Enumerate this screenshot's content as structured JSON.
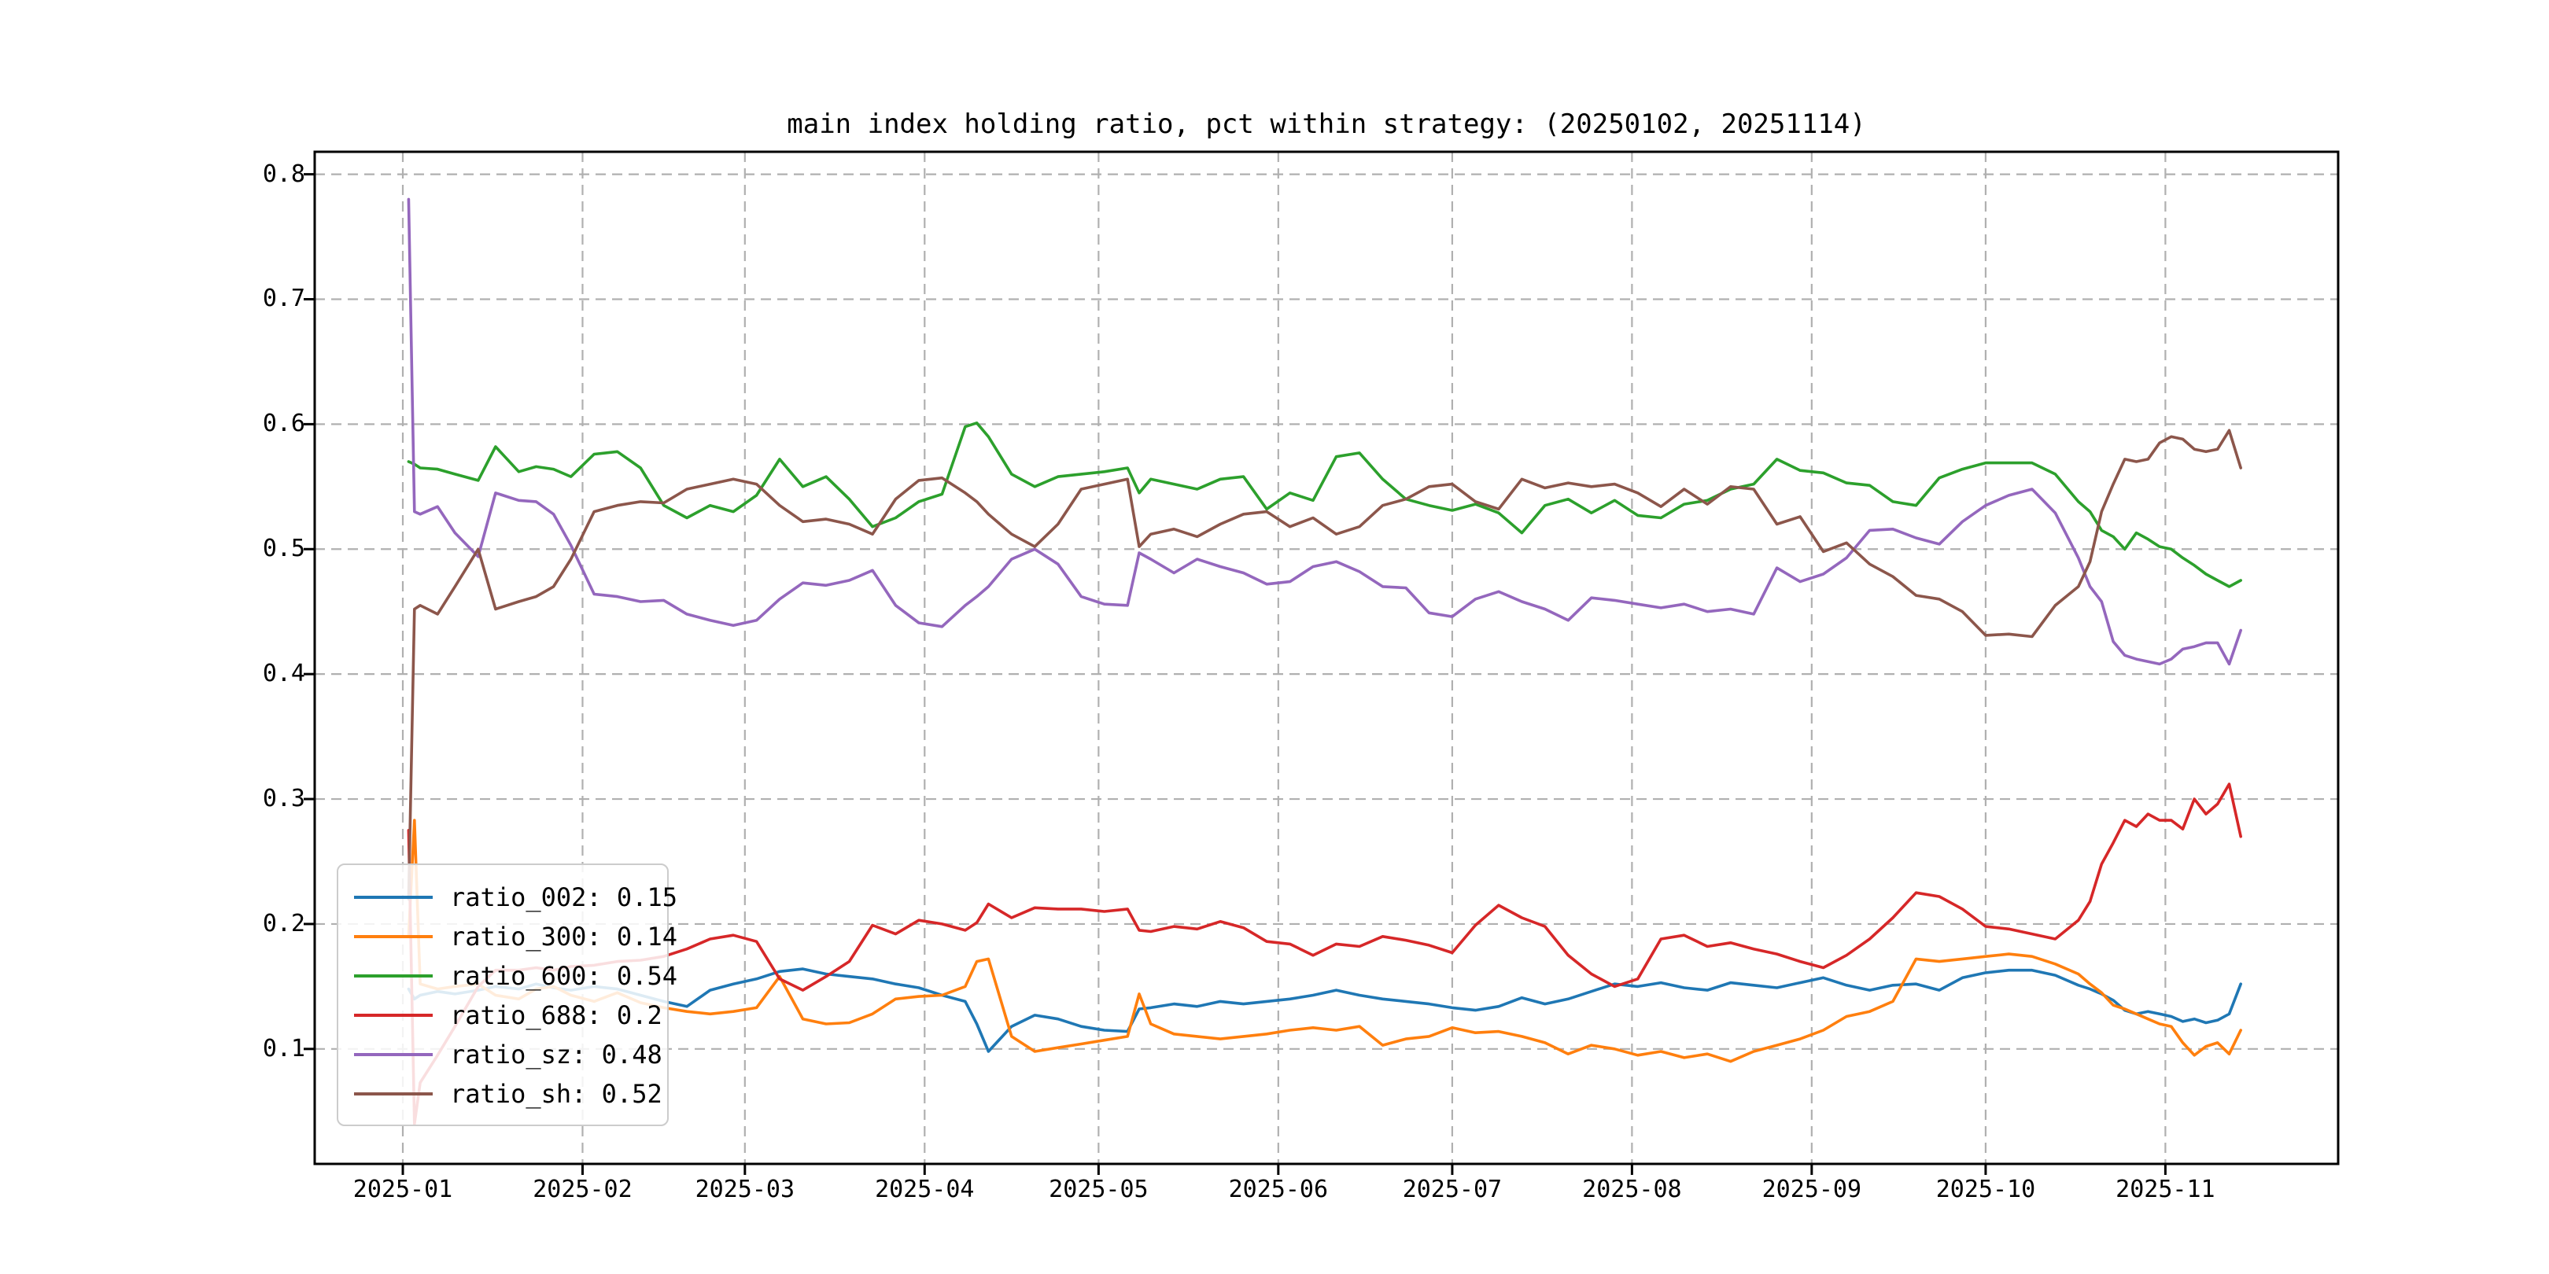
{
  "page": {
    "background": "#ffffff"
  },
  "chart_data": {
    "type": "line",
    "title": "main index holding ratio, pct within strategy: (20250102, 20251114)",
    "date_range": [
      "20250102",
      "20251114"
    ],
    "x_tick_labels": [
      "2025-01",
      "2025-02",
      "2025-03",
      "2025-04",
      "2025-05",
      "2025-06",
      "2025-07",
      "2025-08",
      "2025-09",
      "2025-10",
      "2025-11"
    ],
    "month_tick_days": [
      0,
      31,
      59,
      90,
      120,
      151,
      181,
      212,
      243,
      273,
      304
    ],
    "y_ticks": [
      {
        "label": "0.8",
        "value": 0.8
      },
      {
        "label": "0.7",
        "value": 0.7
      },
      {
        "label": "0.6",
        "value": 0.6
      },
      {
        "label": "0.5",
        "value": 0.5
      },
      {
        "label": "0.4",
        "value": 0.4
      },
      {
        "label": "0.3",
        "value": 0.3
      },
      {
        "label": "0.2",
        "value": 0.2
      },
      {
        "label": "0.1",
        "value": 0.1
      }
    ],
    "xlim_days": [
      -15.2,
      333.8
    ],
    "ylim": [
      0.008,
      0.818
    ],
    "grid": "dashed",
    "grid_color": "#b0b0b0",
    "legend_position": "lower left",
    "x_days": [
      1,
      2,
      3,
      6,
      9,
      13,
      16,
      20,
      23,
      26,
      29,
      33,
      37,
      41,
      45,
      49,
      53,
      57,
      61,
      65,
      69,
      73,
      77,
      81,
      85,
      89,
      93,
      97,
      99,
      101,
      105,
      109,
      113,
      117,
      121,
      125,
      127,
      129,
      133,
      137,
      141,
      145,
      149,
      153,
      157,
      161,
      165,
      169,
      173,
      177,
      181,
      185,
      189,
      193,
      197,
      201,
      205,
      209,
      213,
      217,
      221,
      225,
      229,
      233,
      237,
      241,
      245,
      249,
      253,
      257,
      261,
      265,
      269,
      273,
      277,
      281,
      285,
      289,
      291,
      293,
      295,
      297,
      299,
      301,
      303,
      305,
      307,
      309,
      311,
      313,
      315,
      317
    ],
    "series": [
      {
        "name": "ratio_002",
        "legend_label": "ratio_002: 0.15",
        "mean": 0.15,
        "color": "#1f77b4",
        "values": [
          0.148,
          0.14,
          0.143,
          0.146,
          0.144,
          0.147,
          0.15,
          0.148,
          0.152,
          0.149,
          0.147,
          0.15,
          0.148,
          0.143,
          0.138,
          0.134,
          0.147,
          0.152,
          0.156,
          0.162,
          0.164,
          0.16,
          0.158,
          0.156,
          0.152,
          0.149,
          0.143,
          0.138,
          0.12,
          0.098,
          0.118,
          0.127,
          0.124,
          0.118,
          0.115,
          0.114,
          0.132,
          0.133,
          0.136,
          0.134,
          0.138,
          0.136,
          0.138,
          0.14,
          0.143,
          0.147,
          0.143,
          0.14,
          0.138,
          0.136,
          0.133,
          0.131,
          0.134,
          0.141,
          0.136,
          0.14,
          0.146,
          0.152,
          0.15,
          0.153,
          0.149,
          0.147,
          0.153,
          0.151,
          0.149,
          0.153,
          0.157,
          0.151,
          0.147,
          0.151,
          0.152,
          0.147,
          0.157,
          0.161,
          0.163,
          0.163,
          0.159,
          0.151,
          0.148,
          0.144,
          0.139,
          0.131,
          0.128,
          0.13,
          0.128,
          0.126,
          0.122,
          0.124,
          0.121,
          0.123,
          0.128,
          0.152
        ]
      },
      {
        "name": "ratio_300",
        "legend_label": "ratio_300: 0.14",
        "mean": 0.14,
        "color": "#ff7f0e",
        "values": [
          0.19,
          0.283,
          0.152,
          0.148,
          0.15,
          0.152,
          0.143,
          0.14,
          0.148,
          0.15,
          0.143,
          0.138,
          0.145,
          0.137,
          0.133,
          0.13,
          0.128,
          0.13,
          0.133,
          0.158,
          0.124,
          0.12,
          0.121,
          0.128,
          0.14,
          0.142,
          0.143,
          0.15,
          0.17,
          0.172,
          0.11,
          0.098,
          0.101,
          0.104,
          0.107,
          0.11,
          0.144,
          0.12,
          0.112,
          0.11,
          0.108,
          0.11,
          0.112,
          0.115,
          0.117,
          0.115,
          0.118,
          0.103,
          0.108,
          0.11,
          0.117,
          0.113,
          0.114,
          0.11,
          0.105,
          0.096,
          0.103,
          0.1,
          0.095,
          0.098,
          0.093,
          0.096,
          0.09,
          0.098,
          0.103,
          0.108,
          0.115,
          0.126,
          0.13,
          0.138,
          0.172,
          0.17,
          0.172,
          0.174,
          0.176,
          0.174,
          0.168,
          0.16,
          0.152,
          0.145,
          0.135,
          0.132,
          0.128,
          0.124,
          0.12,
          0.118,
          0.105,
          0.095,
          0.102,
          0.105,
          0.096,
          0.115
        ]
      },
      {
        "name": "ratio_600",
        "legend_label": "ratio_600: 0.54",
        "mean": 0.54,
        "color": "#2ca02c",
        "values": [
          0.57,
          0.568,
          0.565,
          0.564,
          0.56,
          0.555,
          0.582,
          0.562,
          0.566,
          0.564,
          0.558,
          0.576,
          0.578,
          0.565,
          0.535,
          0.525,
          0.535,
          0.53,
          0.543,
          0.572,
          0.55,
          0.558,
          0.54,
          0.518,
          0.525,
          0.538,
          0.544,
          0.598,
          0.601,
          0.59,
          0.56,
          0.55,
          0.558,
          0.56,
          0.562,
          0.565,
          0.545,
          0.556,
          0.552,
          0.548,
          0.556,
          0.558,
          0.532,
          0.545,
          0.539,
          0.574,
          0.577,
          0.556,
          0.54,
          0.535,
          0.531,
          0.536,
          0.529,
          0.513,
          0.535,
          0.54,
          0.529,
          0.539,
          0.527,
          0.525,
          0.536,
          0.539,
          0.548,
          0.552,
          0.572,
          0.563,
          0.561,
          0.553,
          0.551,
          0.538,
          0.535,
          0.557,
          0.564,
          0.569,
          0.569,
          0.569,
          0.56,
          0.538,
          0.53,
          0.515,
          0.51,
          0.5,
          0.513,
          0.508,
          0.502,
          0.5,
          0.493,
          0.487,
          0.48,
          0.475,
          0.47,
          0.475
        ]
      },
      {
        "name": "ratio_688",
        "legend_label": "ratio_688: 0.2",
        "mean": 0.2,
        "color": "#d62728",
        "values": [
          0.275,
          0.04,
          0.073,
          0.095,
          0.118,
          0.15,
          0.163,
          0.163,
          0.165,
          0.163,
          0.166,
          0.167,
          0.17,
          0.171,
          0.174,
          0.18,
          0.188,
          0.191,
          0.186,
          0.156,
          0.147,
          0.158,
          0.17,
          0.199,
          0.192,
          0.203,
          0.2,
          0.195,
          0.201,
          0.216,
          0.205,
          0.213,
          0.212,
          0.212,
          0.21,
          0.212,
          0.195,
          0.194,
          0.198,
          0.196,
          0.202,
          0.197,
          0.186,
          0.184,
          0.175,
          0.184,
          0.182,
          0.19,
          0.187,
          0.183,
          0.177,
          0.199,
          0.215,
          0.205,
          0.198,
          0.175,
          0.16,
          0.15,
          0.156,
          0.188,
          0.191,
          0.182,
          0.185,
          0.18,
          0.176,
          0.17,
          0.165,
          0.175,
          0.188,
          0.205,
          0.225,
          0.222,
          0.212,
          0.198,
          0.196,
          0.192,
          0.188,
          0.203,
          0.218,
          0.248,
          0.265,
          0.283,
          0.278,
          0.288,
          0.283,
          0.283,
          0.276,
          0.3,
          0.288,
          0.296,
          0.312,
          0.27
        ]
      },
      {
        "name": "ratio_sz",
        "legend_label": "ratio_sz: 0.48",
        "mean": 0.48,
        "color": "#9467bd",
        "values": [
          0.78,
          0.53,
          0.528,
          0.534,
          0.513,
          0.494,
          0.545,
          0.539,
          0.538,
          0.528,
          0.503,
          0.464,
          0.462,
          0.458,
          0.459,
          0.448,
          0.443,
          0.439,
          0.443,
          0.46,
          0.473,
          0.471,
          0.475,
          0.483,
          0.455,
          0.441,
          0.438,
          0.455,
          0.462,
          0.47,
          0.492,
          0.5,
          0.488,
          0.462,
          0.456,
          0.455,
          0.497,
          0.492,
          0.481,
          0.492,
          0.486,
          0.481,
          0.472,
          0.474,
          0.486,
          0.49,
          0.482,
          0.47,
          0.469,
          0.449,
          0.446,
          0.46,
          0.466,
          0.458,
          0.452,
          0.443,
          0.461,
          0.459,
          0.456,
          0.453,
          0.456,
          0.45,
          0.452,
          0.448,
          0.485,
          0.474,
          0.48,
          0.493,
          0.515,
          0.516,
          0.509,
          0.504,
          0.522,
          0.535,
          0.543,
          0.548,
          0.529,
          0.493,
          0.47,
          0.458,
          0.426,
          0.415,
          0.412,
          0.41,
          0.408,
          0.412,
          0.42,
          0.422,
          0.425,
          0.425,
          0.408,
          0.435
        ]
      },
      {
        "name": "ratio_sh",
        "legend_label": "ratio_sh: 0.52",
        "mean": 0.52,
        "color": "#8c564b",
        "values": [
          0.22,
          0.452,
          0.455,
          0.448,
          0.47,
          0.5,
          0.452,
          0.458,
          0.462,
          0.47,
          0.492,
          0.53,
          0.535,
          0.538,
          0.537,
          0.548,
          0.552,
          0.556,
          0.552,
          0.535,
          0.522,
          0.524,
          0.52,
          0.512,
          0.54,
          0.555,
          0.557,
          0.545,
          0.538,
          0.528,
          0.512,
          0.502,
          0.52,
          0.548,
          0.552,
          0.556,
          0.502,
          0.512,
          0.516,
          0.51,
          0.52,
          0.528,
          0.53,
          0.518,
          0.525,
          0.512,
          0.518,
          0.535,
          0.54,
          0.55,
          0.552,
          0.538,
          0.532,
          0.556,
          0.549,
          0.553,
          0.55,
          0.552,
          0.545,
          0.534,
          0.548,
          0.536,
          0.55,
          0.548,
          0.52,
          0.526,
          0.498,
          0.505,
          0.488,
          0.478,
          0.463,
          0.46,
          0.45,
          0.431,
          0.432,
          0.43,
          0.455,
          0.47,
          0.49,
          0.53,
          0.552,
          0.572,
          0.57,
          0.572,
          0.585,
          0.59,
          0.588,
          0.58,
          0.578,
          0.58,
          0.595,
          0.565
        ]
      }
    ]
  }
}
